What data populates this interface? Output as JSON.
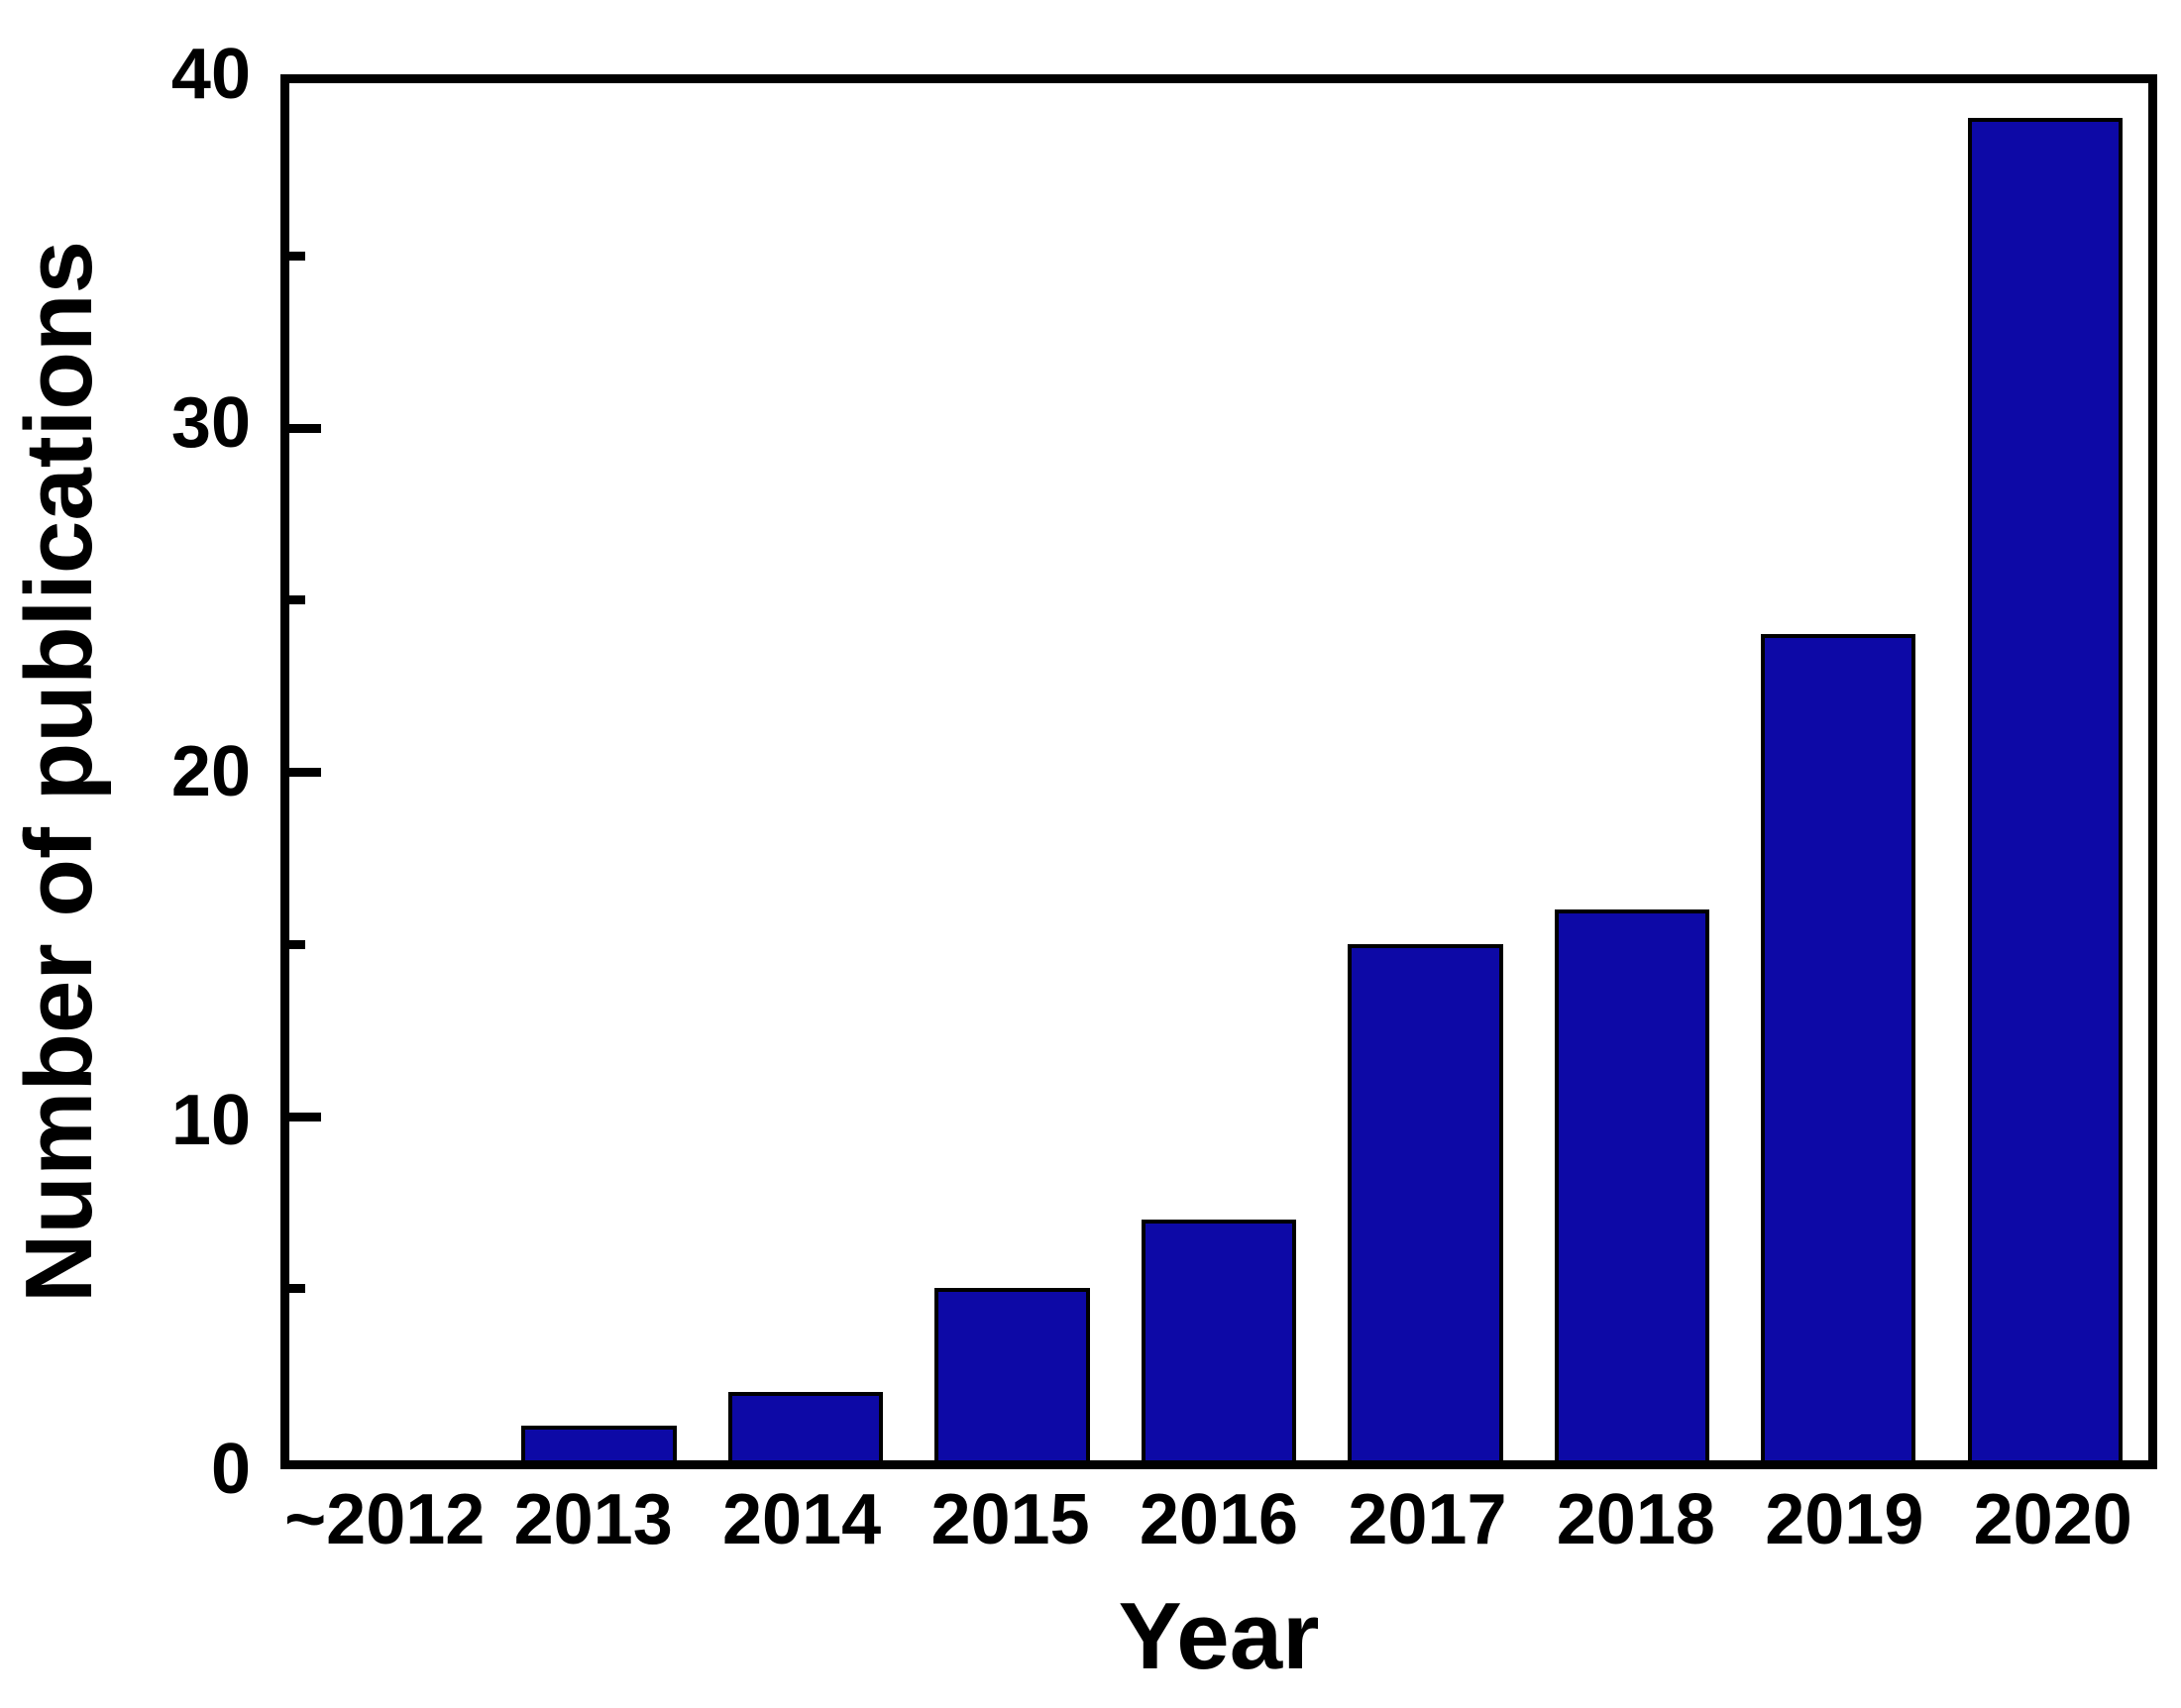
{
  "figure": {
    "background": "#ffffff",
    "frame_color": "#000000",
    "text_color": "#000000"
  },
  "chart_data": {
    "type": "bar",
    "title": "",
    "categories": [
      "~2012",
      "2013",
      "2014",
      "2015",
      "2016",
      "2017",
      "2018",
      "2019",
      "2020"
    ],
    "values": [
      0,
      1,
      2,
      5,
      7,
      15,
      16,
      24,
      39
    ],
    "xlabel": "Year",
    "ylabel": "Number of publications",
    "ylim": [
      0,
      40
    ],
    "ytick_major": [
      0,
      10,
      20,
      30,
      40
    ],
    "ytick_minor": [
      5,
      15,
      25,
      35
    ],
    "grid": false,
    "legend_position": "none",
    "bar_color": "#0d09a6",
    "bar_border_color": "#000000"
  }
}
